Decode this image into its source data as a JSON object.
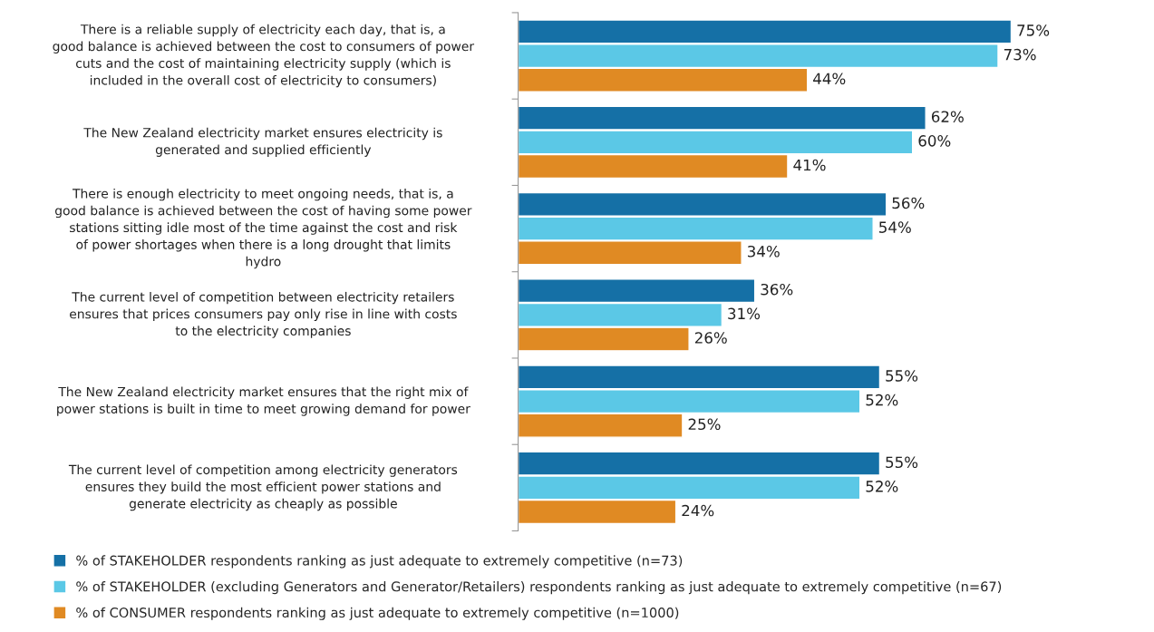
{
  "chart_data": {
    "type": "bar",
    "orientation": "horizontal",
    "grid": false,
    "legend": "bottom left",
    "categories": [
      "There is a reliable supply of electricity each day, that is, a good balance is achieved between the cost to consumers of power cuts and the cost of maintaining electricity supply (which is included in the overall cost of electricity to consumers)",
      "The New Zealand electricity market ensures electricity is generated and supplied efficiently",
      "There is enough electricity to meet ongoing needs, that is, a good balance is achieved between the cost of having some power stations sitting idle most of the time against the cost and risk of power shortages when there is a long drought that limits hydro",
      "The current level of competition between electricity retailers ensures that prices consumers pay only rise in line with costs to the electricity companies",
      "The New Zealand electricity market ensures that the right mix of power stations is built in time to meet growing demand for power",
      "The current level of competition among electricity generators ensures they build the most efficient power stations and generate electricity as cheaply as possible"
    ],
    "series": [
      {
        "name": "% of STAKEHOLDER respondents ranking as just adequate to extremely competitive (n=73)",
        "color": "#1570a6",
        "values": [
          75,
          62,
          56,
          36,
          55,
          55
        ],
        "value_labels": [
          "75%",
          "62%",
          "56%",
          "36%",
          "55%",
          "55%"
        ]
      },
      {
        "name": "% of STAKEHOLDER (excluding Generators and Generator/Retailers) respondents ranking as just adequate to extremely competitive (n=67)",
        "color": "#5bc8e6",
        "values": [
          73,
          60,
          54,
          31,
          52,
          52
        ],
        "value_labels": [
          "73%",
          "60%",
          "54%",
          "31%",
          "52%",
          "52%"
        ]
      },
      {
        "name": "% of CONSUMER respondents ranking as just adequate to extremely competitive (n=1000)",
        "color": "#e08a23",
        "values": [
          44,
          41,
          34,
          26,
          25,
          24
        ],
        "value_labels": [
          "44%",
          "41%",
          "34%",
          "26%",
          "25%",
          "24%"
        ]
      }
    ]
  }
}
